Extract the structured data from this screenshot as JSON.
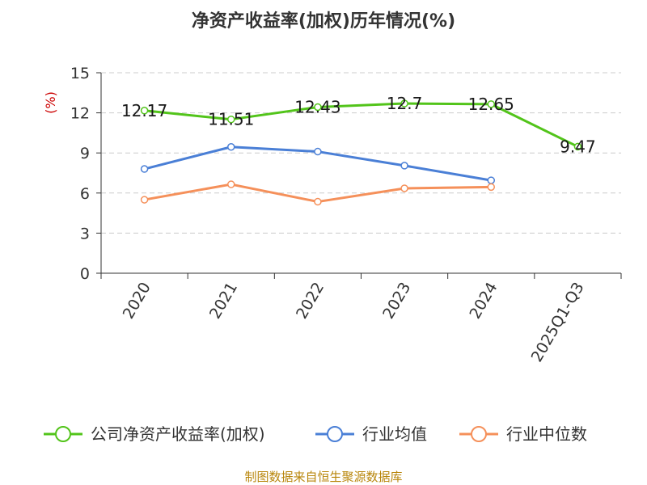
{
  "chart_data": {
    "type": "line",
    "title": "净资产收益率(加权)历年情况(%)",
    "ylabel": "(%)",
    "xlabel": "",
    "categories": [
      "2020",
      "2021",
      "2022",
      "2023",
      "2024",
      "2025Q1-Q3"
    ],
    "ylim": [
      0,
      15
    ],
    "yticks": [
      0,
      3,
      6,
      9,
      12,
      15
    ],
    "grid": true,
    "legend_position": "bottom",
    "series": [
      {
        "name": "公司净资产收益率(加权)",
        "color": "#52c41a",
        "values": [
          12.17,
          11.51,
          12.43,
          12.7,
          12.65,
          9.47
        ],
        "labels": [
          "12.17",
          "11.51",
          "12.43",
          "12.7",
          "12.65",
          "9.47"
        ]
      },
      {
        "name": "行业均值",
        "color": "#4a7fd6",
        "values": [
          7.8,
          9.45,
          9.1,
          8.05,
          6.95,
          null
        ]
      },
      {
        "name": "行业中位数",
        "color": "#f5905a",
        "values": [
          5.5,
          6.65,
          5.35,
          6.35,
          6.45,
          null
        ]
      }
    ]
  },
  "source": "制图数据来自恒生聚源数据库",
  "colors": {
    "ylabel": "#cc0000",
    "source": "#b8860b",
    "axis": "#333333",
    "grid": "#cccccc"
  }
}
